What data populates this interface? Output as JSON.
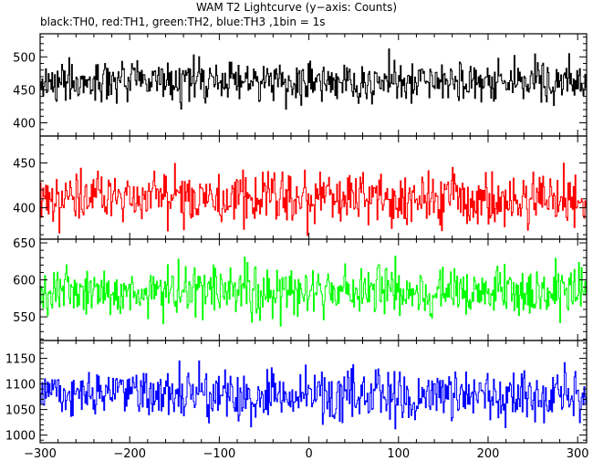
{
  "title": "WAM T2 Lightcurve (y−axis: Counts)",
  "subtitle": "black:TH0, red:TH1, green:TH2, blue:TH3 ,1bin = 1s",
  "chart_data": {
    "type": "line",
    "title": "WAM T2 Lightcurve (y−axis: Counts)",
    "subtitle": "black:TH0, red:TH1, green:TH2, blue:TH3 ,1bin = 1s",
    "xlim": [
      -300,
      310
    ],
    "x_ticks": [
      -300,
      -200,
      -100,
      0,
      100,
      200,
      300
    ],
    "x_tick_labels": [
      "−300",
      "−200",
      "−100",
      "0",
      "100",
      "200",
      "300"
    ],
    "bin_seconds": 1,
    "panels": [
      {
        "color": "#000000",
        "ylim": [
          380,
          535
        ],
        "y_ticks": [
          400,
          450,
          500
        ],
        "mean": 462,
        "sigma": 21,
        "sample_values": [
          462,
          441,
          488,
          470,
          455,
          503,
          430,
          467,
          492,
          448,
          476,
          459,
          512,
          437,
          481,
          464,
          452,
          498,
          420,
          473
        ]
      },
      {
        "color": "#ff0000",
        "ylim": [
          365,
          480
        ],
        "y_ticks": [
          400,
          450
        ],
        "mean": 410,
        "sigma": 21,
        "sample_values": [
          410,
          392,
          431,
          418,
          401,
          448,
          380,
          415,
          436,
          396,
          425,
          407,
          462,
          388,
          428,
          412,
          399,
          441,
          375,
          421
        ]
      },
      {
        "color": "#00ff00",
        "ylim": [
          518,
          655
        ],
        "y_ticks": [
          550,
          600,
          650
        ],
        "mean": 585,
        "sigma": 24,
        "sample_values": [
          585,
          562,
          609,
          594,
          574,
          628,
          546,
          590,
          615,
          568,
          601,
          580,
          640,
          553,
          606,
          588,
          571,
          621,
          535,
          597
        ]
      },
      {
        "color": "#0000ff",
        "ylim": [
          985,
          1185
        ],
        "y_ticks": [
          1000,
          1050,
          1100,
          1150
        ],
        "mean": 1080,
        "sigma": 33,
        "sample_values": [
          1080,
          1046,
          1118,
          1094,
          1063,
          1145,
          1021,
          1086,
          1127,
          1052,
          1104,
          1073,
          1162,
          1034,
          1111,
          1082,
          1058,
          1138,
          1008,
          1099
        ]
      }
    ]
  }
}
